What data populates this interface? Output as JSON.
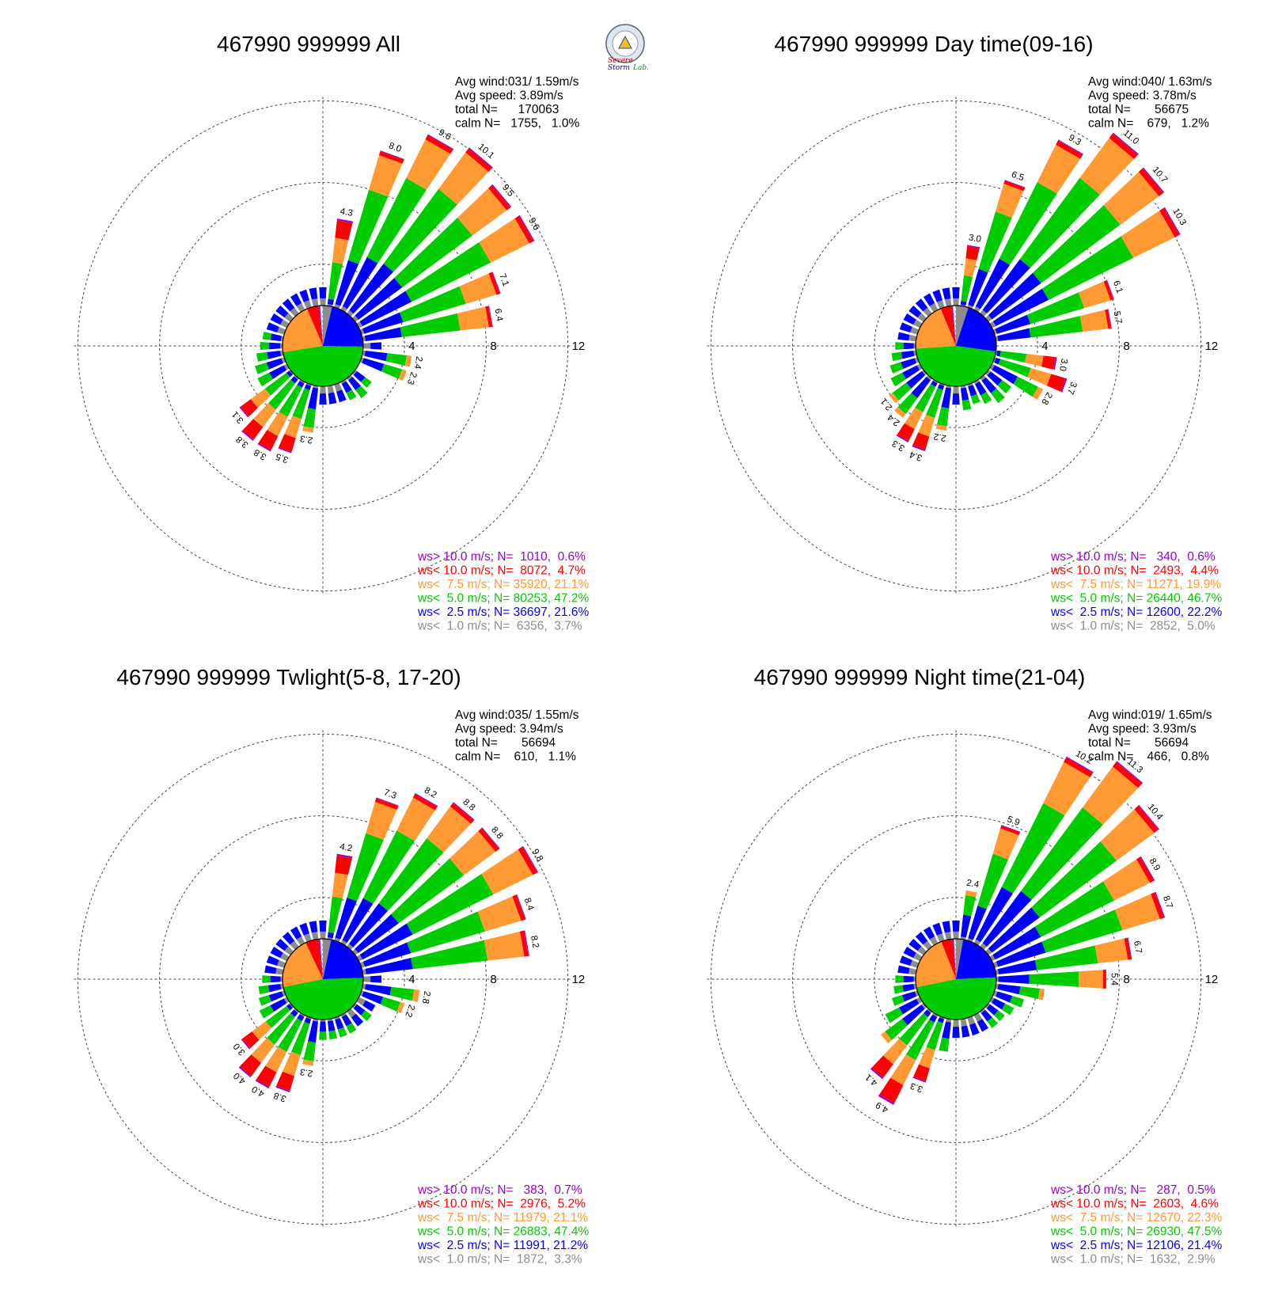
{
  "colors": {
    "grey": "#8c8c8c",
    "blue": "#0000ff",
    "green": "#00cc00",
    "orange": "#ff9933",
    "red": "#ff0000",
    "purple": "#9900cc"
  },
  "logo": {
    "text_1": "Severe",
    "text_2": "Storm",
    "text_3": "Lab."
  },
  "chart_data": [
    {
      "type": "wind-rose",
      "title": "467990 999999 All",
      "stats": {
        "avg_wind": "Avg wind:031/ 1.59m/s",
        "avg_speed": "Avg speed: 3.89m/s",
        "total": "total N=      170063",
        "calm": "calm N=   1755,   1.0%"
      },
      "rings": [
        4,
        8,
        12
      ],
      "labeled_bars": [
        {
          "dir": 10,
          "pct": 4.3,
          "label": "4.3"
        },
        {
          "dir": 20,
          "pct": 8.0,
          "label": "8.0"
        },
        {
          "dir": 30,
          "pct": 9.6,
          "label": "9.6"
        },
        {
          "dir": 40,
          "pct": 10.1,
          "label": "10.1"
        },
        {
          "dir": 50,
          "pct": 9.5,
          "label": "9.5"
        },
        {
          "dir": 60,
          "pct": 9.6,
          "label": "9.6"
        },
        {
          "dir": 70,
          "pct": 7.1,
          "label": "7.1"
        },
        {
          "dir": 80,
          "pct": 6.4,
          "label": "6.4"
        },
        {
          "dir": 100,
          "pct": 2.4,
          "label": "2.4"
        },
        {
          "dir": 110,
          "pct": 2.3,
          "label": "2.3"
        },
        {
          "dir": 190,
          "pct": 2.3,
          "label": "2.3"
        },
        {
          "dir": 200,
          "pct": 3.5,
          "label": "3.5"
        },
        {
          "dir": 210,
          "pct": 3.8,
          "label": "3.8"
        },
        {
          "dir": 220,
          "pct": 3.8,
          "label": "3.8"
        },
        {
          "dir": 230,
          "pct": 3.1,
          "label": "3.1"
        }
      ],
      "speed_classes": [
        {
          "label": "ws> 10.0 m/s; N=  1010,  0.6%",
          "color": "purple"
        },
        {
          "label": "ws< 10.0 m/s; N=  8072,  4.7%",
          "color": "red"
        },
        {
          "label": "ws<  7.5 m/s; N= 35920, 21.1%",
          "color": "orange"
        },
        {
          "label": "ws<  5.0 m/s; N= 80253, 47.2%",
          "color": "green"
        },
        {
          "label": "ws<  2.5 m/s; N= 36697, 21.6%",
          "color": "blue"
        },
        {
          "label": "ws<  1.0 m/s; N=  6356,  3.7%",
          "color": "grey"
        }
      ],
      "class_pct": [
        3.7,
        21.6,
        47.2,
        21.1,
        4.7,
        0.6
      ]
    },
    {
      "type": "wind-rose",
      "title": "467990 999999 Day time(09-16)",
      "stats": {
        "avg_wind": "Avg wind:040/ 1.63m/s",
        "avg_speed": "Avg speed: 3.78m/s",
        "total": "total N=       56675",
        "calm": "calm N=    679,   1.2%"
      },
      "rings": [
        4,
        8,
        12
      ],
      "labeled_bars": [
        {
          "dir": 10,
          "pct": 3.0,
          "label": "3.0"
        },
        {
          "dir": 20,
          "pct": 6.5,
          "label": "6.5"
        },
        {
          "dir": 30,
          "pct": 9.3,
          "label": "9.3"
        },
        {
          "dir": 40,
          "pct": 11.0,
          "label": "11.0"
        },
        {
          "dir": 50,
          "pct": 10.7,
          "label": "10.7"
        },
        {
          "dir": 60,
          "pct": 10.3,
          "label": "10.3"
        },
        {
          "dir": 70,
          "pct": 6.1,
          "label": "6.1"
        },
        {
          "dir": 80,
          "pct": 5.7,
          "label": "5.7"
        },
        {
          "dir": 100,
          "pct": 3.0,
          "label": "3.0"
        },
        {
          "dir": 110,
          "pct": 3.7,
          "label": "3.7"
        },
        {
          "dir": 120,
          "pct": 2.8,
          "label": "2.8"
        },
        {
          "dir": 190,
          "pct": 2.2,
          "label": "2.2"
        },
        {
          "dir": 200,
          "pct": 3.4,
          "label": "3.4"
        },
        {
          "dir": 210,
          "pct": 3.3,
          "label": "3.3"
        },
        {
          "dir": 220,
          "pct": 2.4,
          "label": "2.4"
        },
        {
          "dir": 230,
          "pct": 2.1,
          "label": "2.1"
        }
      ],
      "speed_classes": [
        {
          "label": "ws> 10.0 m/s; N=   340,  0.6%",
          "color": "purple"
        },
        {
          "label": "ws< 10.0 m/s; N=  2493,  4.4%",
          "color": "red"
        },
        {
          "label": "ws<  7.5 m/s; N= 11271, 19.9%",
          "color": "orange"
        },
        {
          "label": "ws<  5.0 m/s; N= 26440, 46.7%",
          "color": "green"
        },
        {
          "label": "ws<  2.5 m/s; N= 12600, 22.2%",
          "color": "blue"
        },
        {
          "label": "ws<  1.0 m/s; N=  2852,  5.0%",
          "color": "grey"
        }
      ],
      "class_pct": [
        5.0,
        22.2,
        46.7,
        19.9,
        4.4,
        0.6
      ]
    },
    {
      "type": "wind-rose",
      "title": "467990 999999 Twlight(5-8, 17-20)",
      "stats": {
        "avg_wind": "Avg wind:035/ 1.55m/s",
        "avg_speed": "Avg speed: 3.94m/s",
        "total": "total N=       56694",
        "calm": "calm N=    610,   1.1%"
      },
      "rings": [
        4,
        8,
        12
      ],
      "labeled_bars": [
        {
          "dir": 10,
          "pct": 4.2,
          "label": "4.2"
        },
        {
          "dir": 20,
          "pct": 7.3,
          "label": "7.3"
        },
        {
          "dir": 30,
          "pct": 8.2,
          "label": "8.2"
        },
        {
          "dir": 40,
          "pct": 8.8,
          "label": "8.8"
        },
        {
          "dir": 50,
          "pct": 8.8,
          "label": "8.8"
        },
        {
          "dir": 60,
          "pct": 9.8,
          "label": "9.8"
        },
        {
          "dir": 70,
          "pct": 8.4,
          "label": "8.4"
        },
        {
          "dir": 80,
          "pct": 8.2,
          "label": "8.2"
        },
        {
          "dir": 100,
          "pct": 2.8,
          "label": "2.8"
        },
        {
          "dir": 110,
          "pct": 2.2,
          "label": "2.2"
        },
        {
          "dir": 190,
          "pct": 2.3,
          "label": "2.3"
        },
        {
          "dir": 200,
          "pct": 3.8,
          "label": "3.8"
        },
        {
          "dir": 210,
          "pct": 4.0,
          "label": "4.0"
        },
        {
          "dir": 220,
          "pct": 4.0,
          "label": "4.0"
        },
        {
          "dir": 230,
          "pct": 3.0,
          "label": "3.0"
        }
      ],
      "speed_classes": [
        {
          "label": "ws> 10.0 m/s; N=   383,  0.7%",
          "color": "purple"
        },
        {
          "label": "ws< 10.0 m/s; N=  2976,  5.2%",
          "color": "red"
        },
        {
          "label": "ws<  7.5 m/s; N= 11979, 21.1%",
          "color": "orange"
        },
        {
          "label": "ws<  5.0 m/s; N= 26883, 47.4%",
          "color": "green"
        },
        {
          "label": "ws<  2.5 m/s; N= 11991, 21.2%",
          "color": "blue"
        },
        {
          "label": "ws<  1.0 m/s; N=  1872,  3.3%",
          "color": "grey"
        }
      ],
      "class_pct": [
        3.3,
        21.2,
        47.4,
        21.1,
        5.2,
        0.7
      ]
    },
    {
      "type": "wind-rose",
      "title": "467990 999999 Night time(21-04)",
      "stats": {
        "avg_wind": "Avg wind:019/ 1.65m/s",
        "avg_speed": "Avg speed: 3.93m/s",
        "total": "total N=       56694",
        "calm": "calm N=    466,   0.8%"
      },
      "rings": [
        4,
        8,
        12
      ],
      "labeled_bars": [
        {
          "dir": 10,
          "pct": 2.4,
          "label": "2.4"
        },
        {
          "dir": 20,
          "pct": 5.9,
          "label": "5.9"
        },
        {
          "dir": 30,
          "pct": 10.2,
          "label": "10.2"
        },
        {
          "dir": 40,
          "pct": 11.3,
          "label": "11.3"
        },
        {
          "dir": 50,
          "pct": 10.4,
          "label": "10.4"
        },
        {
          "dir": 60,
          "pct": 8.9,
          "label": "8.9"
        },
        {
          "dir": 70,
          "pct": 8.7,
          "label": "8.7"
        },
        {
          "dir": 80,
          "pct": 6.7,
          "label": "6.7"
        },
        {
          "dir": 90,
          "pct": 5.4,
          "label": "5.4"
        },
        {
          "dir": 200,
          "pct": 3.3,
          "label": "3.3"
        },
        {
          "dir": 210,
          "pct": 4.9,
          "label": "4.9"
        },
        {
          "dir": 220,
          "pct": 4.1,
          "label": "4.1"
        }
      ],
      "speed_classes": [
        {
          "label": "ws> 10.0 m/s; N=   287,  0.5%",
          "color": "purple"
        },
        {
          "label": "ws< 10.0 m/s; N=  2603,  4.6%",
          "color": "red"
        },
        {
          "label": "ws<  7.5 m/s; N= 12670, 22.3%",
          "color": "orange"
        },
        {
          "label": "ws<  5.0 m/s; N= 26930, 47.5%",
          "color": "green"
        },
        {
          "label": "ws<  2.5 m/s; N= 12106, 21.4%",
          "color": "blue"
        },
        {
          "label": "ws<  1.0 m/s; N=  1632,  2.9%",
          "color": "grey"
        }
      ],
      "class_pct": [
        2.9,
        21.4,
        47.5,
        22.3,
        4.6,
        0.5
      ]
    }
  ]
}
